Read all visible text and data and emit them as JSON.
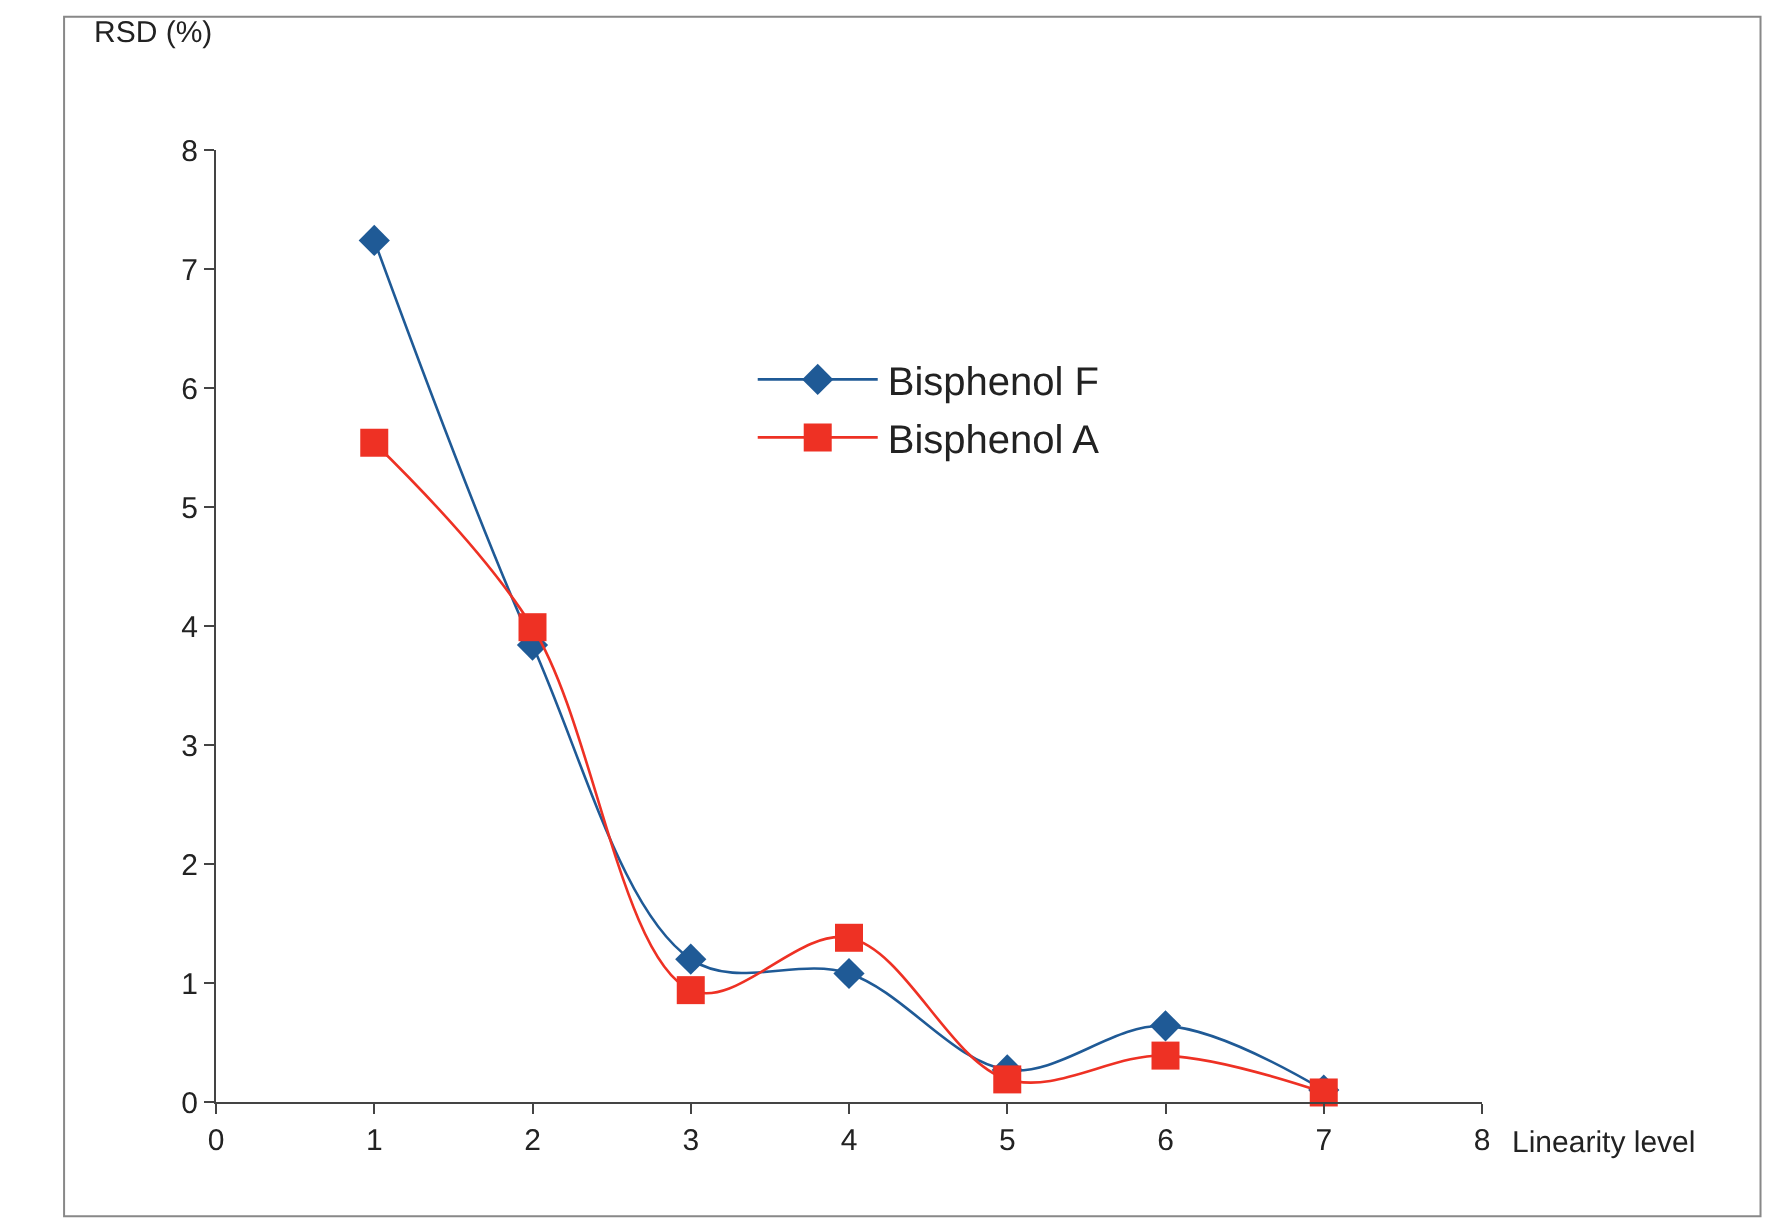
{
  "chart_data": {
    "type": "line",
    "xlabel": "Linearity level",
    "ylabel": "RSD (%)",
    "x": [
      1,
      2,
      3,
      4,
      5,
      6,
      7
    ],
    "series": [
      {
        "name": "Bisphenol F",
        "color": "#1f5a96",
        "marker": "diamond",
        "values": [
          7.24,
          3.84,
          1.2,
          1.08,
          0.27,
          0.64,
          0.1
        ]
      },
      {
        "name": "Bisphenol A",
        "color": "#ee3124",
        "marker": "square",
        "values": [
          5.54,
          3.99,
          0.94,
          1.38,
          0.19,
          0.39,
          0.08
        ]
      }
    ],
    "xlim": [
      0,
      8
    ],
    "xticks": [
      0,
      1,
      2,
      3,
      4,
      5,
      6,
      7,
      8
    ],
    "ylim": [
      0,
      8
    ],
    "yticks": [
      0,
      1,
      2,
      3,
      4,
      5,
      6,
      7,
      8
    ],
    "legend": "top right",
    "line_style": "solid"
  }
}
